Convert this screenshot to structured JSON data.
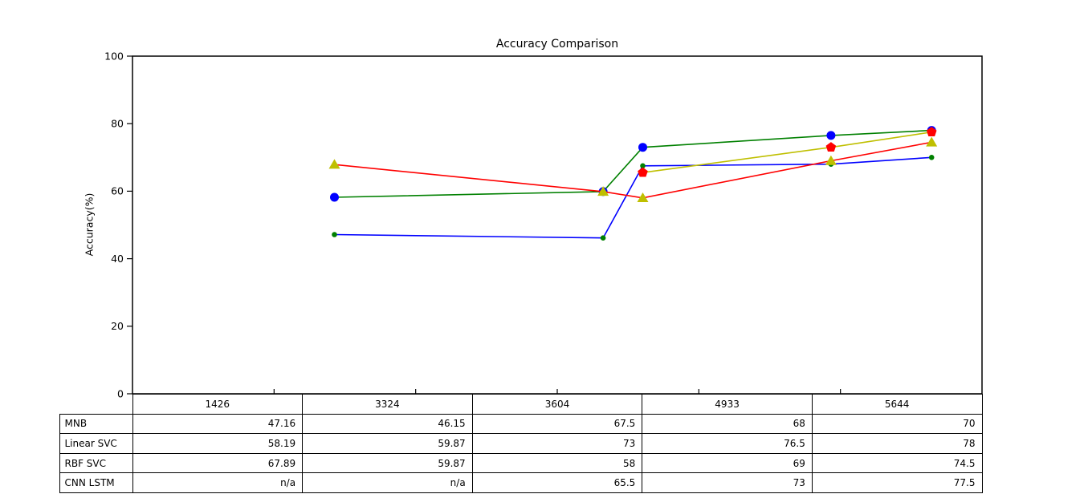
{
  "chart_data": {
    "type": "line",
    "title": "Accuracy Comparison",
    "xlabel": "",
    "ylabel": "Accuracy(%)",
    "x": [
      1426,
      3324,
      3604,
      4933,
      5644
    ],
    "series": [
      {
        "name": "MNB",
        "values": [
          47.16,
          46.15,
          67.5,
          68,
          70
        ],
        "line_color": "#0000ff",
        "marker": "dot",
        "marker_color": "#008000"
      },
      {
        "name": "Linear SVC",
        "values": [
          58.19,
          59.87,
          73,
          76.5,
          78
        ],
        "line_color": "#008000",
        "marker": "circle",
        "marker_color": "#0000ff"
      },
      {
        "name": "RBF SVC",
        "values": [
          67.89,
          59.87,
          58,
          69,
          74.5
        ],
        "line_color": "#ff0000",
        "marker": "triangle",
        "marker_color": "#bfbf00"
      },
      {
        "name": "CNN LSTM",
        "values": [
          null,
          null,
          65.5,
          73,
          77.5
        ],
        "line_color": "#bfbf00",
        "marker": "pentagon",
        "marker_color": "#ff0000"
      }
    ],
    "xlim": [
      0,
      6000
    ],
    "ylim": [
      0,
      100
    ],
    "yticks": [
      0,
      20,
      40,
      60,
      80,
      100
    ],
    "xticks": [
      1000,
      2000,
      3000,
      4000,
      5000
    ],
    "grid": false,
    "legend_position": "none"
  },
  "table": {
    "col_headers": [
      "1426",
      "3324",
      "3604",
      "4933",
      "5644"
    ],
    "rows": [
      {
        "label": "MNB",
        "values": [
          "47.16",
          "46.15",
          "67.5",
          "68",
          "70"
        ]
      },
      {
        "label": "Linear SVC",
        "values": [
          "58.19",
          "59.87",
          "73",
          "76.5",
          "78"
        ]
      },
      {
        "label": "RBF SVC",
        "values": [
          "67.89",
          "59.87",
          "58",
          "69",
          "74.5"
        ]
      },
      {
        "label": "CNN LSTM",
        "values": [
          "n/a",
          "n/a",
          "65.5",
          "73",
          "77.5"
        ]
      }
    ]
  }
}
